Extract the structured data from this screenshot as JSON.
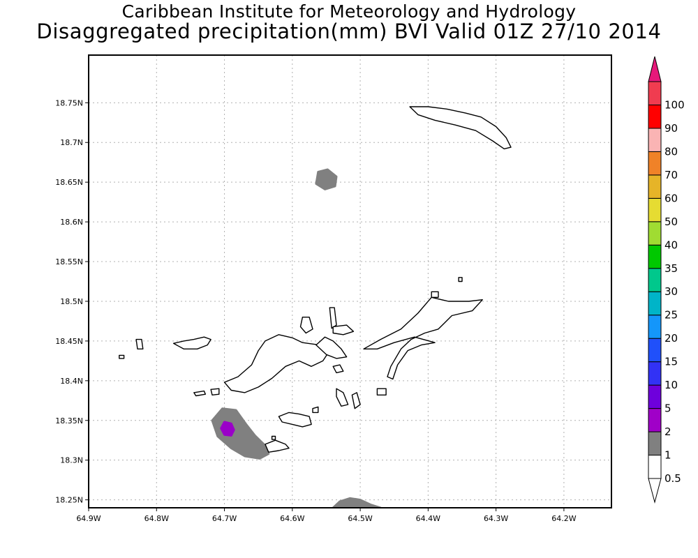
{
  "header": {
    "title_line1": "Caribbean Institute for Meteorology and Hydrology",
    "title_line2": "Disaggregated precipitation(mm) BVI Valid 01Z 27/10 2014"
  },
  "map": {
    "lon_min": -64.9,
    "lon_max": -64.13,
    "lat_min": 18.24,
    "lat_max": 18.81,
    "x_ticks": [
      {
        "value": -64.9,
        "label": "64.9W"
      },
      {
        "value": -64.8,
        "label": "64.8W"
      },
      {
        "value": -64.7,
        "label": "64.7W"
      },
      {
        "value": -64.6,
        "label": "64.6W"
      },
      {
        "value": -64.5,
        "label": "64.5W"
      },
      {
        "value": -64.4,
        "label": "64.4W"
      },
      {
        "value": -64.3,
        "label": "64.3W"
      },
      {
        "value": -64.2,
        "label": "64.2W"
      }
    ],
    "y_ticks": [
      {
        "value": 18.25,
        "label": "18.25N"
      },
      {
        "value": 18.3,
        "label": "18.3N"
      },
      {
        "value": 18.35,
        "label": "18.35N"
      },
      {
        "value": 18.4,
        "label": "18.4N"
      },
      {
        "value": 18.45,
        "label": "18.45N"
      },
      {
        "value": 18.5,
        "label": "18.5N"
      },
      {
        "value": 18.55,
        "label": "18.55N"
      },
      {
        "value": 18.6,
        "label": "18.6N"
      },
      {
        "value": 18.65,
        "label": "18.65N"
      },
      {
        "value": 18.7,
        "label": "18.7N"
      },
      {
        "value": 18.75,
        "label": "18.75N"
      }
    ],
    "grid": true,
    "colors": {
      "frame": "#000000",
      "grid": "#b0b0b0",
      "land_fill": "#ffffff",
      "land_outline": "#000000",
      "precip_1": "#808080",
      "precip_2": "#9a00c8"
    }
  },
  "precip_areas": [
    {
      "name": "precip-gray-northcentral",
      "level": "1",
      "color": "#808080",
      "points": [
        [
          -64.562,
          18.663
        ],
        [
          -64.548,
          18.666
        ],
        [
          -64.535,
          18.657
        ],
        [
          -64.537,
          18.645
        ],
        [
          -64.552,
          18.641
        ],
        [
          -64.565,
          18.648
        ]
      ]
    },
    {
      "name": "precip-gray-southwest",
      "level": "1",
      "color": "#808080",
      "points": [
        [
          -64.703,
          18.365
        ],
        [
          -64.683,
          18.363
        ],
        [
          -64.668,
          18.345
        ],
        [
          -64.655,
          18.331
        ],
        [
          -64.642,
          18.32
        ],
        [
          -64.635,
          18.308
        ],
        [
          -64.648,
          18.302
        ],
        [
          -64.67,
          18.305
        ],
        [
          -64.69,
          18.315
        ],
        [
          -64.71,
          18.33
        ],
        [
          -64.718,
          18.35
        ]
      ]
    },
    {
      "name": "precip-gray-south",
      "level": "1",
      "color": "#808080",
      "points": [
        [
          -64.54,
          18.24
        ],
        [
          -64.53,
          18.248
        ],
        [
          -64.515,
          18.252
        ],
        [
          -64.5,
          18.25
        ],
        [
          -64.485,
          18.244
        ],
        [
          -64.47,
          18.24
        ]
      ]
    },
    {
      "name": "precip-purple-southwest",
      "level": "2",
      "color": "#9a00c8",
      "points": [
        [
          -64.7,
          18.348
        ],
        [
          -64.69,
          18.346
        ],
        [
          -64.686,
          18.338
        ],
        [
          -64.69,
          18.331
        ],
        [
          -64.7,
          18.332
        ],
        [
          -64.705,
          18.34
        ]
      ]
    }
  ],
  "islands": [
    {
      "name": "anegada",
      "points": [
        [
          -64.427,
          18.745
        ],
        [
          -64.4,
          18.745
        ],
        [
          -64.372,
          18.742
        ],
        [
          -64.345,
          18.737
        ],
        [
          -64.322,
          18.732
        ],
        [
          -64.3,
          18.72
        ],
        [
          -64.285,
          18.706
        ],
        [
          -64.278,
          18.694
        ],
        [
          -64.288,
          18.692
        ],
        [
          -64.305,
          18.702
        ],
        [
          -64.33,
          18.715
        ],
        [
          -64.36,
          18.722
        ],
        [
          -64.39,
          18.728
        ],
        [
          -64.415,
          18.735
        ]
      ]
    },
    {
      "name": "tortola",
      "points": [
        [
          -64.7,
          18.398
        ],
        [
          -64.68,
          18.405
        ],
        [
          -64.66,
          18.42
        ],
        [
          -64.65,
          18.438
        ],
        [
          -64.64,
          18.45
        ],
        [
          -64.62,
          18.458
        ],
        [
          -64.6,
          18.454
        ],
        [
          -64.585,
          18.448
        ],
        [
          -64.56,
          18.445
        ],
        [
          -64.545,
          18.438
        ],
        [
          -64.555,
          18.425
        ],
        [
          -64.572,
          18.418
        ],
        [
          -64.59,
          18.425
        ],
        [
          -64.61,
          18.418
        ],
        [
          -64.63,
          18.403
        ],
        [
          -64.65,
          18.392
        ],
        [
          -64.67,
          18.385
        ],
        [
          -64.69,
          18.388
        ]
      ]
    },
    {
      "name": "tortola-east",
      "points": [
        [
          -64.565,
          18.445
        ],
        [
          -64.552,
          18.455
        ],
        [
          -64.54,
          18.45
        ],
        [
          -64.528,
          18.44
        ],
        [
          -64.52,
          18.43
        ],
        [
          -64.535,
          18.428
        ],
        [
          -64.55,
          18.433
        ]
      ]
    },
    {
      "name": "jost-van-dyke",
      "points": [
        [
          -64.775,
          18.447
        ],
        [
          -64.76,
          18.45
        ],
        [
          -64.745,
          18.452
        ],
        [
          -64.73,
          18.455
        ],
        [
          -64.72,
          18.452
        ],
        [
          -64.725,
          18.445
        ],
        [
          -64.74,
          18.44
        ],
        [
          -64.76,
          18.44
        ]
      ]
    },
    {
      "name": "little-jost",
      "points": [
        [
          -64.83,
          18.452
        ],
        [
          -64.822,
          18.452
        ],
        [
          -64.82,
          18.44
        ],
        [
          -64.828,
          18.44
        ]
      ]
    },
    {
      "name": "sandy-cay",
      "points": [
        [
          -64.855,
          18.432
        ],
        [
          -64.848,
          18.432
        ],
        [
          -64.848,
          18.428
        ],
        [
          -64.855,
          18.428
        ]
      ]
    },
    {
      "name": "guana-island",
      "points": [
        [
          -64.585,
          18.48
        ],
        [
          -64.575,
          18.48
        ],
        [
          -64.57,
          18.465
        ],
        [
          -64.58,
          18.46
        ],
        [
          -64.588,
          18.468
        ]
      ]
    },
    {
      "name": "great-camanoe",
      "points": [
        [
          -64.545,
          18.492
        ],
        [
          -64.538,
          18.492
        ],
        [
          -64.535,
          18.47
        ],
        [
          -64.542,
          18.466
        ]
      ]
    },
    {
      "name": "beef-island",
      "points": [
        [
          -64.54,
          18.468
        ],
        [
          -64.52,
          18.47
        ],
        [
          -64.51,
          18.462
        ],
        [
          -64.525,
          18.458
        ],
        [
          -64.54,
          18.46
        ]
      ]
    },
    {
      "name": "thatch-island",
      "points": [
        [
          -64.745,
          18.385
        ],
        [
          -64.73,
          18.387
        ],
        [
          -64.728,
          18.383
        ],
        [
          -64.742,
          18.381
        ]
      ]
    },
    {
      "name": "frenchman-cay",
      "points": [
        [
          -64.72,
          18.389
        ],
        [
          -64.708,
          18.39
        ],
        [
          -64.708,
          18.383
        ],
        [
          -64.718,
          18.382
        ]
      ]
    },
    {
      "name": "virgin-gorda",
      "points": [
        [
          -64.495,
          18.44
        ],
        [
          -64.47,
          18.452
        ],
        [
          -64.44,
          18.465
        ],
        [
          -64.415,
          18.485
        ],
        [
          -64.395,
          18.505
        ],
        [
          -64.37,
          18.5
        ],
        [
          -64.34,
          18.5
        ],
        [
          -64.32,
          18.502
        ],
        [
          -64.335,
          18.488
        ],
        [
          -64.365,
          18.482
        ],
        [
          -64.385,
          18.465
        ],
        [
          -64.405,
          18.46
        ],
        [
          -64.425,
          18.452
        ],
        [
          -64.44,
          18.44
        ],
        [
          -64.455,
          18.418
        ],
        [
          -64.46,
          18.405
        ],
        [
          -64.452,
          18.402
        ],
        [
          -64.445,
          18.42
        ],
        [
          -64.43,
          18.438
        ],
        [
          -64.41,
          18.445
        ],
        [
          -64.39,
          18.448
        ],
        [
          -64.42,
          18.455
        ],
        [
          -64.45,
          18.448
        ],
        [
          -64.475,
          18.44
        ]
      ]
    },
    {
      "name": "virgin-gorda-north",
      "points": [
        [
          -64.355,
          18.53
        ],
        [
          -64.35,
          18.53
        ],
        [
          -64.35,
          18.525
        ],
        [
          -64.355,
          18.525
        ]
      ]
    },
    {
      "name": "scrub-island",
      "points": [
        [
          -64.54,
          18.418
        ],
        [
          -64.53,
          18.42
        ],
        [
          -64.525,
          18.412
        ],
        [
          -64.535,
          18.41
        ]
      ]
    },
    {
      "name": "mosquito-island",
      "points": [
        [
          -64.395,
          18.512
        ],
        [
          -64.385,
          18.512
        ],
        [
          -64.385,
          18.505
        ],
        [
          -64.395,
          18.505
        ]
      ]
    },
    {
      "name": "salt-island",
      "points": [
        [
          -64.535,
          18.39
        ],
        [
          -64.525,
          18.385
        ],
        [
          -64.518,
          18.37
        ],
        [
          -64.528,
          18.368
        ],
        [
          -64.535,
          18.38
        ]
      ]
    },
    {
      "name": "cooper-island",
      "points": [
        [
          -64.512,
          18.382
        ],
        [
          -64.505,
          18.385
        ],
        [
          -64.5,
          18.37
        ],
        [
          -64.508,
          18.365
        ]
      ]
    },
    {
      "name": "ginger-island",
      "points": [
        [
          -64.475,
          18.39
        ],
        [
          -64.462,
          18.39
        ],
        [
          -64.462,
          18.382
        ],
        [
          -64.475,
          18.382
        ]
      ]
    },
    {
      "name": "peter-island",
      "points": [
        [
          -64.62,
          18.355
        ],
        [
          -64.605,
          18.36
        ],
        [
          -64.59,
          18.358
        ],
        [
          -64.575,
          18.355
        ],
        [
          -64.572,
          18.345
        ],
        [
          -64.585,
          18.342
        ],
        [
          -64.6,
          18.345
        ],
        [
          -64.615,
          18.348
        ]
      ]
    },
    {
      "name": "dead-chest",
      "points": [
        [
          -64.57,
          18.365
        ],
        [
          -64.562,
          18.367
        ],
        [
          -64.562,
          18.36
        ],
        [
          -64.57,
          18.36
        ]
      ]
    },
    {
      "name": "norman-island",
      "points": [
        [
          -64.64,
          18.32
        ],
        [
          -64.625,
          18.325
        ],
        [
          -64.61,
          18.32
        ],
        [
          -64.605,
          18.315
        ],
        [
          -64.62,
          18.312
        ],
        [
          -64.635,
          18.31
        ]
      ]
    },
    {
      "name": "pelican-island",
      "points": [
        [
          -64.63,
          18.33
        ],
        [
          -64.625,
          18.33
        ],
        [
          -64.625,
          18.326
        ],
        [
          -64.63,
          18.326
        ]
      ]
    }
  ],
  "legend": {
    "items": [
      {
        "label": "0.5",
        "color": "#ffffff"
      },
      {
        "label": "1",
        "color": "#808080"
      },
      {
        "label": "2",
        "color": "#a000c8"
      },
      {
        "label": "5",
        "color": "#6e00dc"
      },
      {
        "label": "10",
        "color": "#3232f5"
      },
      {
        "label": "15",
        "color": "#2050fa"
      },
      {
        "label": "20",
        "color": "#1496fa"
      },
      {
        "label": "25",
        "color": "#00b4c8"
      },
      {
        "label": "30",
        "color": "#00c88c"
      },
      {
        "label": "35",
        "color": "#00c800"
      },
      {
        "label": "40",
        "color": "#a0dc32"
      },
      {
        "label": "50",
        "color": "#e6dc32"
      },
      {
        "label": "60",
        "color": "#e6b428"
      },
      {
        "label": "70",
        "color": "#f08228"
      },
      {
        "label": "80",
        "color": "#fab4b4"
      },
      {
        "label": "90",
        "color": "#ff0000"
      },
      {
        "label": "100",
        "color": "#f03c50"
      }
    ],
    "top_color": "#e6187a",
    "bottom_color": "#ffffff"
  }
}
